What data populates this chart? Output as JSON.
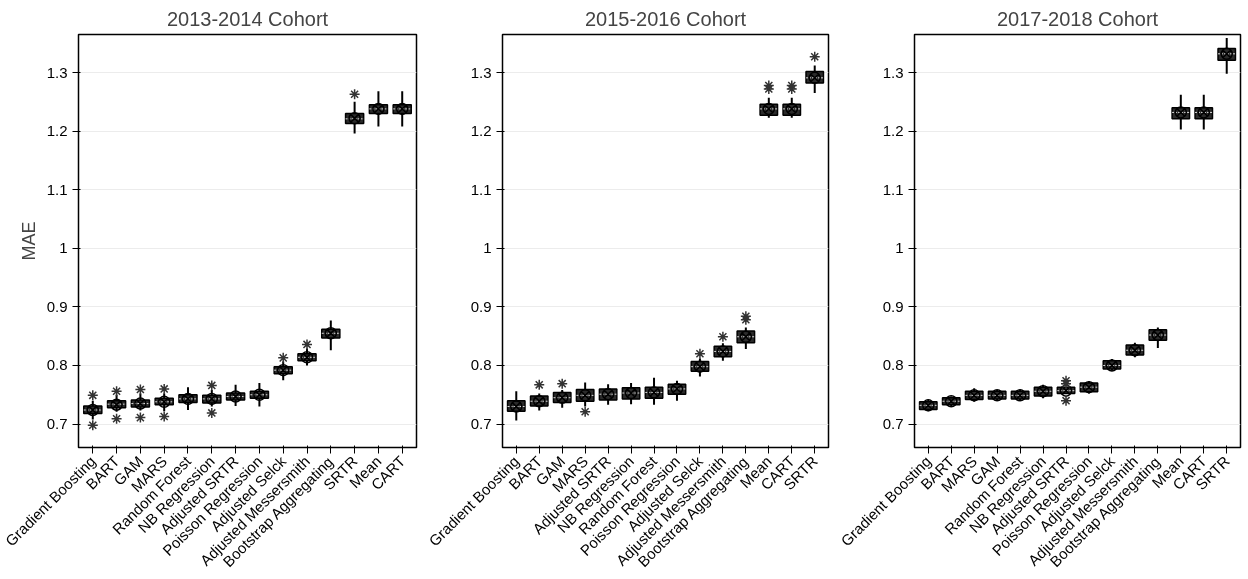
{
  "chart_data": [
    {
      "type": "box",
      "title": "2013-2014 Cohort",
      "ylabel": "MAE",
      "grid": "y",
      "categories": [
        "Gradient Boosting",
        "BART",
        "GAM",
        "MARS",
        "Random Forest",
        "NB Regression",
        "Adjusted SRTR",
        "Poisson Regression",
        "Adjusted Selck",
        "Adjusted Messersmith",
        "Bootstrap Aggregating",
        "SRTR",
        "Mean",
        "CART"
      ],
      "ylim": [
        0.66,
        1.365
      ],
      "yticks": [
        0.7,
        0.8,
        0.9,
        1,
        1.1,
        1.2,
        1.3
      ],
      "series": [
        {
          "color": "#2b2b2b",
          "boxes": [
            {
              "low": 0.708,
              "q1": 0.718,
              "median": 0.724,
              "q3": 0.731,
              "high": 0.74,
              "mean": 0.724,
              "outliers": [
                0.698,
                0.749
              ]
            },
            {
              "low": 0.721,
              "q1": 0.728,
              "median": 0.734,
              "q3": 0.74,
              "high": 0.75,
              "mean": 0.733,
              "outliers": [
                0.709,
                0.756
              ]
            },
            {
              "low": 0.723,
              "q1": 0.729,
              "median": 0.735,
              "q3": 0.741,
              "high": 0.752,
              "mean": 0.735,
              "outliers": [
                0.711,
                0.759
              ]
            },
            {
              "low": 0.722,
              "q1": 0.733,
              "median": 0.738,
              "q3": 0.744,
              "high": 0.752,
              "mean": 0.738,
              "outliers": [
                0.713,
                0.76
              ]
            },
            {
              "low": 0.724,
              "q1": 0.737,
              "median": 0.743,
              "q3": 0.75,
              "high": 0.763,
              "mean": 0.743
            },
            {
              "low": 0.73,
              "q1": 0.736,
              "median": 0.743,
              "q3": 0.749,
              "high": 0.758,
              "mean": 0.743,
              "outliers": [
                0.719,
                0.766
              ]
            },
            {
              "low": 0.731,
              "q1": 0.741,
              "median": 0.747,
              "q3": 0.753,
              "high": 0.767,
              "mean": 0.747
            },
            {
              "low": 0.73,
              "q1": 0.744,
              "median": 0.75,
              "q3": 0.756,
              "high": 0.77,
              "mean": 0.75
            },
            {
              "low": 0.775,
              "q1": 0.786,
              "median": 0.792,
              "q3": 0.798,
              "high": 0.807,
              "mean": 0.792,
              "outliers": [
                0.813
              ]
            },
            {
              "low": 0.8,
              "q1": 0.808,
              "median": 0.814,
              "q3": 0.82,
              "high": 0.829,
              "mean": 0.814,
              "outliers": [
                0.836
              ]
            },
            {
              "low": 0.826,
              "q1": 0.847,
              "median": 0.855,
              "q3": 0.862,
              "high": 0.877,
              "mean": 0.855
            },
            {
              "low": 1.196,
              "q1": 1.213,
              "median": 1.221,
              "q3": 1.23,
              "high": 1.25,
              "mean": 1.222,
              "outliers": [
                1.263
              ]
            },
            {
              "low": 1.208,
              "q1": 1.23,
              "median": 1.238,
              "q3": 1.245,
              "high": 1.268,
              "mean": 1.238
            },
            {
              "low": 1.208,
              "q1": 1.23,
              "median": 1.238,
              "q3": 1.245,
              "high": 1.268,
              "mean": 1.238
            }
          ]
        }
      ]
    },
    {
      "type": "box",
      "title": "2015-2016 Cohort",
      "grid": "y",
      "categories": [
        "Gradient Boosting",
        "BART",
        "GAM",
        "MARS",
        "Adjusted SRTR",
        "NB Regression",
        "Random Forest",
        "Poisson Regression",
        "Adjusted Selck",
        "Adjusted Messersmith",
        "Bootstrap Aggregating",
        "Mean",
        "CART",
        "SRTR"
      ],
      "ylim": [
        0.66,
        1.365
      ],
      "yticks": [
        0.7,
        0.8,
        0.9,
        1,
        1.1,
        1.2,
        1.3
      ],
      "series": [
        {
          "color": "#2b2b2b",
          "boxes": [
            {
              "low": 0.706,
              "q1": 0.722,
              "median": 0.73,
              "q3": 0.74,
              "high": 0.756,
              "mean": 0.73
            },
            {
              "low": 0.723,
              "q1": 0.731,
              "median": 0.739,
              "q3": 0.748,
              "high": 0.752,
              "mean": 0.739,
              "outliers": [
                0.767
              ]
            },
            {
              "low": 0.728,
              "q1": 0.737,
              "median": 0.745,
              "q3": 0.754,
              "high": 0.758,
              "mean": 0.745,
              "outliers": [
                0.769
              ]
            },
            {
              "low": 0.73,
              "q1": 0.739,
              "median": 0.749,
              "q3": 0.759,
              "high": 0.771,
              "mean": 0.749,
              "outliers": [
                0.721
              ]
            },
            {
              "low": 0.733,
              "q1": 0.741,
              "median": 0.751,
              "q3": 0.76,
              "high": 0.768,
              "mean": 0.751
            },
            {
              "low": 0.734,
              "q1": 0.743,
              "median": 0.753,
              "q3": 0.762,
              "high": 0.77,
              "mean": 0.753
            },
            {
              "low": 0.733,
              "q1": 0.744,
              "median": 0.754,
              "q3": 0.763,
              "high": 0.779,
              "mean": 0.754
            },
            {
              "low": 0.74,
              "q1": 0.751,
              "median": 0.76,
              "q3": 0.768,
              "high": 0.774,
              "mean": 0.76
            },
            {
              "low": 0.781,
              "q1": 0.79,
              "median": 0.798,
              "q3": 0.807,
              "high": 0.812,
              "mean": 0.798,
              "outliers": [
                0.82
              ]
            },
            {
              "low": 0.808,
              "q1": 0.815,
              "median": 0.824,
              "q3": 0.833,
              "high": 0.838,
              "mean": 0.824,
              "outliers": [
                0.849
              ]
            },
            {
              "low": 0.828,
              "q1": 0.839,
              "median": 0.849,
              "q3": 0.859,
              "high": 0.865,
              "mean": 0.849,
              "outliers": [
                0.878,
                0.884
              ]
            },
            {
              "low": 1.223,
              "q1": 1.227,
              "median": 1.238,
              "q3": 1.246,
              "high": 1.257,
              "mean": 1.238,
              "outliers": [
                1.272,
                1.278
              ]
            },
            {
              "low": 1.223,
              "q1": 1.227,
              "median": 1.238,
              "q3": 1.246,
              "high": 1.257,
              "mean": 1.238,
              "outliers": [
                1.272,
                1.278
              ]
            },
            {
              "low": 1.265,
              "q1": 1.282,
              "median": 1.291,
              "q3": 1.302,
              "high": 1.312,
              "mean": 1.291,
              "outliers": [
                1.327
              ]
            }
          ]
        }
      ]
    },
    {
      "type": "box",
      "title": "2017-2018 Cohort",
      "grid": "y",
      "categories": [
        "Gradient Boosting",
        "BART",
        "MARS",
        "GAM",
        "Random Forest",
        "NB Regression",
        "Adjusted SRTR",
        "Poisson Regression",
        "Adjusted Selck",
        "Adjusted Messersmith",
        "Bootstrap Aggregating",
        "Mean",
        "CART",
        "SRTR"
      ],
      "ylim": [
        0.66,
        1.365
      ],
      "yticks": [
        0.7,
        0.8,
        0.9,
        1,
        1.1,
        1.2,
        1.3
      ],
      "series": [
        {
          "color": "#2b2b2b",
          "boxes": [
            {
              "low": 0.722,
              "q1": 0.725,
              "median": 0.732,
              "q3": 0.738,
              "high": 0.742,
              "mean": 0.732
            },
            {
              "low": 0.731,
              "q1": 0.733,
              "median": 0.739,
              "q3": 0.745,
              "high": 0.747,
              "mean": 0.739
            },
            {
              "low": 0.738,
              "q1": 0.742,
              "median": 0.749,
              "q3": 0.756,
              "high": 0.761,
              "mean": 0.749
            },
            {
              "low": 0.74,
              "q1": 0.743,
              "median": 0.749,
              "q3": 0.756,
              "high": 0.758,
              "mean": 0.749
            },
            {
              "low": 0.74,
              "q1": 0.743,
              "median": 0.749,
              "q3": 0.756,
              "high": 0.759,
              "mean": 0.749
            },
            {
              "low": 0.744,
              "q1": 0.748,
              "median": 0.756,
              "q3": 0.763,
              "high": 0.767,
              "mean": 0.756
            },
            {
              "low": 0.752,
              "q1": 0.752,
              "median": 0.757,
              "q3": 0.763,
              "high": 0.763,
              "mean": 0.757,
              "outliers": [
                0.74,
                0.769,
                0.774
              ]
            },
            {
              "low": 0.752,
              "q1": 0.755,
              "median": 0.763,
              "q3": 0.77,
              "high": 0.773,
              "mean": 0.763
            },
            {
              "low": 0.791,
              "q1": 0.794,
              "median": 0.8,
              "q3": 0.808,
              "high": 0.811,
              "mean": 0.8
            },
            {
              "low": 0.814,
              "q1": 0.818,
              "median": 0.826,
              "q3": 0.835,
              "high": 0.839,
              "mean": 0.826
            },
            {
              "low": 0.83,
              "q1": 0.843,
              "median": 0.852,
              "q3": 0.861,
              "high": 0.865,
              "mean": 0.852
            },
            {
              "low": 1.203,
              "q1": 1.221,
              "median": 1.232,
              "q3": 1.24,
              "high": 1.262,
              "mean": 1.232
            },
            {
              "low": 1.203,
              "q1": 1.221,
              "median": 1.232,
              "q3": 1.24,
              "high": 1.262,
              "mean": 1.232
            },
            {
              "low": 1.298,
              "q1": 1.321,
              "median": 1.332,
              "q3": 1.341,
              "high": 1.359,
              "mean": 1.332
            }
          ]
        }
      ]
    }
  ]
}
